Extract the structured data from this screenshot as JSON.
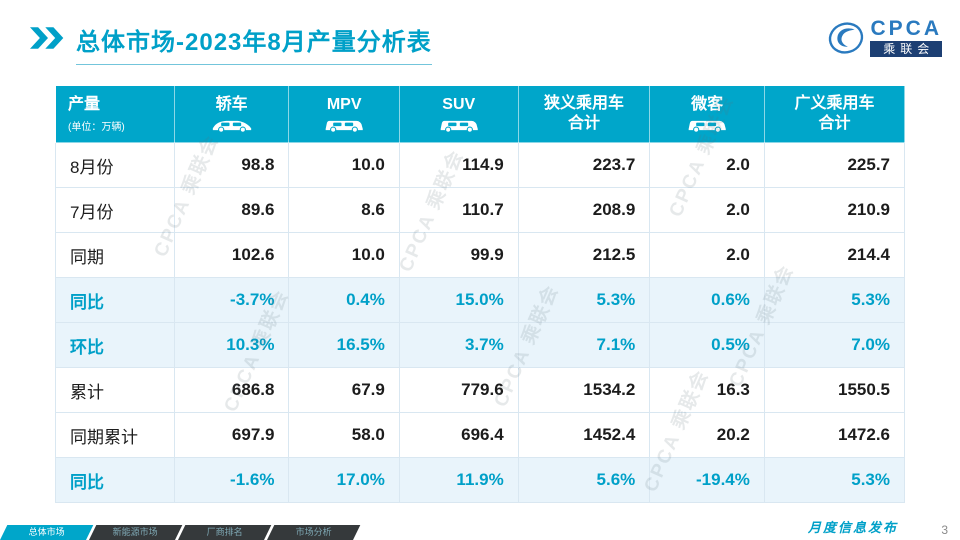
{
  "title": {
    "prefix": "总体市场",
    "rest": "-2023年8月产量分析表"
  },
  "logo": {
    "acronym": "CPCA",
    "subtitle": "乘联会"
  },
  "watermark": "CPCA 乘联会",
  "colors": {
    "accent": "#00a0c8",
    "header_bg": "#00a6ca",
    "highlight_bg": "#e9f4fb",
    "highlight_text": "#00a0c8",
    "tab_dark": "#35393b"
  },
  "table": {
    "header": {
      "title": "产量",
      "unit": "(单位：万辆)",
      "columns": [
        {
          "id": "sedan",
          "line1": "轿车",
          "line2": "",
          "icon": "sedan-icon"
        },
        {
          "id": "mpv",
          "line1": "MPV",
          "line2": "",
          "icon": "mpv-icon"
        },
        {
          "id": "suv",
          "line1": "SUV",
          "line2": "",
          "icon": "suv-icon"
        },
        {
          "id": "narrow-pv-total",
          "line1": "狭义乘用车",
          "line2": "合计",
          "icon": ""
        },
        {
          "id": "minibus",
          "line1": "微客",
          "line2": "",
          "icon": "minibus-icon"
        },
        {
          "id": "broad-pv-total",
          "line1": "广义乘用车",
          "line2": "合计",
          "icon": ""
        }
      ]
    },
    "rows": [
      {
        "label": "8月份",
        "highlight": false,
        "values": [
          "98.8",
          "10.0",
          "114.9",
          "223.7",
          "2.0",
          "225.7"
        ]
      },
      {
        "label": "7月份",
        "highlight": false,
        "values": [
          "89.6",
          "8.6",
          "110.7",
          "208.9",
          "2.0",
          "210.9"
        ]
      },
      {
        "label": "同期",
        "highlight": false,
        "values": [
          "102.6",
          "10.0",
          "99.9",
          "212.5",
          "2.0",
          "214.4"
        ]
      },
      {
        "label": "同比",
        "highlight": true,
        "values": [
          "-3.7%",
          "0.4%",
          "15.0%",
          "5.3%",
          "0.6%",
          "5.3%"
        ]
      },
      {
        "label": "环比",
        "highlight": true,
        "values": [
          "10.3%",
          "16.5%",
          "3.7%",
          "7.1%",
          "0.5%",
          "7.0%"
        ]
      },
      {
        "label": "累计",
        "highlight": false,
        "values": [
          "686.8",
          "67.9",
          "779.6",
          "1534.2",
          "16.3",
          "1550.5"
        ]
      },
      {
        "label": "同期累计",
        "highlight": false,
        "values": [
          "697.9",
          "58.0",
          "696.4",
          "1452.4",
          "20.2",
          "1472.6"
        ]
      },
      {
        "label": "同比",
        "highlight": true,
        "values": [
          "-1.6%",
          "17.0%",
          "11.9%",
          "5.6%",
          "-19.4%",
          "5.3%"
        ]
      }
    ]
  },
  "chart_data": {
    "type": "table",
    "title": "总体市场-2023年8月产量分析表",
    "unit": "万辆",
    "columns": [
      "产量",
      "轿车",
      "MPV",
      "SUV",
      "狭义乘用车合计",
      "微客",
      "广义乘用车合计"
    ],
    "rows": [
      [
        "8月份",
        98.8,
        10.0,
        114.9,
        223.7,
        2.0,
        225.7
      ],
      [
        "7月份",
        89.6,
        8.6,
        110.7,
        208.9,
        2.0,
        210.9
      ],
      [
        "同期",
        102.6,
        10.0,
        99.9,
        212.5,
        2.0,
        214.4
      ],
      [
        "同比",
        "-3.7%",
        "0.4%",
        "15.0%",
        "5.3%",
        "0.6%",
        "5.3%"
      ],
      [
        "环比",
        "10.3%",
        "16.5%",
        "3.7%",
        "7.1%",
        "0.5%",
        "7.0%"
      ],
      [
        "累计",
        686.8,
        67.9,
        779.6,
        1534.2,
        16.3,
        1550.5
      ],
      [
        "同期累计",
        697.9,
        58.0,
        696.4,
        1452.4,
        20.2,
        1472.6
      ],
      [
        "同比",
        "-1.6%",
        "17.0%",
        "11.9%",
        "5.6%",
        "-19.4%",
        "5.3%"
      ]
    ]
  },
  "footer": {
    "tabs": [
      {
        "id": "overall-market",
        "label": "总体市场",
        "active": true
      },
      {
        "id": "nev-market",
        "label": "新能源市场",
        "active": false
      },
      {
        "id": "manufacturer-ranking",
        "label": "厂商排名",
        "active": false
      },
      {
        "id": "market-analysis",
        "label": "市场分析",
        "active": false
      }
    ],
    "publish": "月度信息发布",
    "page": "3"
  }
}
